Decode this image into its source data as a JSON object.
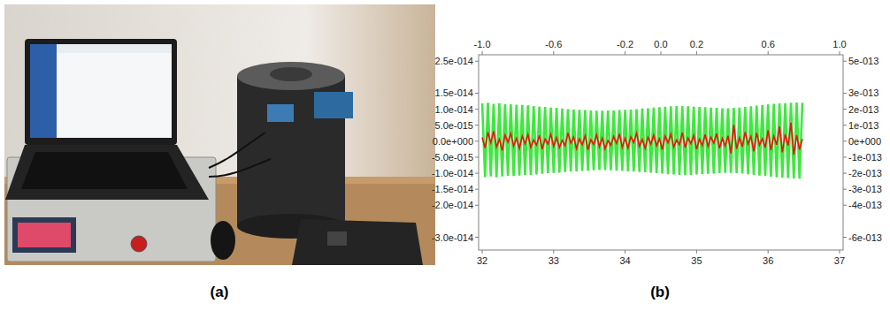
{
  "panel_labels": [
    "(a)",
    "(b)"
  ],
  "chart_data": {
    "type": "line",
    "grid": false,
    "xlim": [
      31.95,
      37.05
    ],
    "xticks": [
      32,
      33,
      34,
      35,
      36,
      37
    ],
    "x2lim": [
      -1.02,
      1.02
    ],
    "x2ticks": [
      {
        "value": -1.0,
        "label": "-1.0"
      },
      -0.6,
      -0.2,
      {
        "value": 0.0,
        "label": "0.0"
      },
      0.2,
      0.6,
      {
        "value": 1.0,
        "label": "1.0"
      }
    ],
    "ylim": [
      -3.4e-14,
      2.7e-14
    ],
    "yticks": [
      {
        "value": 2.5e-14,
        "label": "2.5e-014"
      },
      {
        "value": 1.5e-14,
        "label": "1.5e-014"
      },
      {
        "value": 1e-14,
        "label": "1.0e-014"
      },
      {
        "value": 5e-15,
        "label": "5.0e-015"
      },
      {
        "value": 0,
        "label": "0.0e+000"
      },
      {
        "value": -5e-15,
        "label": "-5.0e-015"
      },
      {
        "value": -1e-14,
        "label": "-1.0e-014"
      },
      {
        "value": -1.5e-14,
        "label": "-1.5e-014"
      },
      {
        "value": -2e-14,
        "label": "-2.0e-014"
      },
      {
        "value": -3e-14,
        "label": "-3.0e-014"
      }
    ],
    "y2lim": [
      -6.8e-13,
      5.4e-13
    ],
    "y2ticks": [
      {
        "value": 5e-13,
        "label": "5e-013"
      },
      {
        "value": 3e-13,
        "label": "3e-013"
      },
      {
        "value": 2e-13,
        "label": "2e-013"
      },
      {
        "value": 1e-13,
        "label": "1e-013"
      },
      {
        "value": 0,
        "label": "0e+000"
      },
      {
        "value": -1e-13,
        "label": "-1e-013"
      },
      {
        "value": -2e-13,
        "label": "-2e-013"
      },
      {
        "value": -3e-13,
        "label": "-3e-013"
      },
      {
        "value": -4e-13,
        "label": "-4e-013"
      },
      {
        "value": -6e-13,
        "label": "-6e-013"
      }
    ],
    "x": [
      32.0,
      32.04,
      32.08,
      32.12,
      32.16,
      32.2,
      32.24,
      32.28,
      32.32,
      32.36,
      32.4,
      32.44,
      32.48,
      32.52,
      32.56,
      32.6,
      32.64,
      32.68,
      32.72,
      32.76,
      32.8,
      32.84,
      32.88,
      32.92,
      32.96,
      33.0,
      33.04,
      33.08,
      33.12,
      33.16,
      33.2,
      33.24,
      33.28,
      33.32,
      33.36,
      33.4,
      33.44,
      33.48,
      33.52,
      33.56,
      33.6,
      33.64,
      33.68,
      33.72,
      33.76,
      33.8,
      33.84,
      33.88,
      33.92,
      33.96,
      34.0,
      34.04,
      34.08,
      34.12,
      34.16,
      34.2,
      34.24,
      34.28,
      34.32,
      34.36,
      34.4,
      34.44,
      34.48,
      34.52,
      34.56,
      34.6,
      34.64,
      34.68,
      34.72,
      34.76,
      34.8,
      34.84,
      34.88,
      34.92,
      34.96,
      35.0,
      35.04,
      35.08,
      35.12,
      35.16,
      35.2,
      35.24,
      35.28,
      35.32,
      35.36,
      35.4,
      35.44,
      35.48,
      35.52,
      35.56,
      35.6,
      35.64,
      35.68,
      35.72,
      35.76,
      35.8,
      35.84,
      35.88,
      35.92,
      35.96,
      36.0,
      36.04,
      36.08,
      36.12,
      36.16,
      36.2,
      36.24,
      36.28,
      36.32,
      36.36,
      36.4,
      36.44,
      36.48
    ],
    "series": [
      {
        "color": "#3fe83f",
        "line_style": "solid",
        "values": [
          1.18e-14,
          -1.12e-14,
          1.2e-14,
          -1.1e-14,
          1.17e-14,
          -1.13e-14,
          1.19e-14,
          -1.1e-14,
          1.16e-14,
          -1.08e-14,
          1.15e-14,
          -1.09e-14,
          1.14e-14,
          -1.07e-14,
          1.13e-14,
          -1.06e-14,
          1.12e-14,
          -1.05e-14,
          1.1e-14,
          -1.04e-14,
          1.08e-14,
          -1.02e-14,
          1.07e-14,
          -1e-14,
          1.05e-14,
          -9.9e-15,
          1.04e-14,
          -9.8e-15,
          1.02e-14,
          -9.6e-15,
          1e-14,
          -9.5e-15,
          9.9e-15,
          -9.4e-15,
          9.8e-15,
          -9.3e-15,
          9.7e-15,
          -9.2e-15,
          9.6e-15,
          -9.1e-15,
          9.5e-15,
          -9e-15,
          9.5e-15,
          -9e-15,
          9.6e-15,
          -9.1e-15,
          9.6e-15,
          -9.2e-15,
          9.7e-15,
          -9.3e-15,
          9.8e-15,
          -9.4e-15,
          9.9e-15,
          -9.5e-15,
          1e-14,
          -9.6e-15,
          1.02e-14,
          -9.7e-15,
          1.03e-14,
          -9.8e-15,
          1.05e-14,
          -1e-14,
          1.06e-14,
          -1.01e-14,
          1.08e-14,
          -1.03e-14,
          1.09e-14,
          -1.04e-14,
          1.1e-14,
          -1.05e-14,
          1.1e-14,
          -1.06e-14,
          1.09e-14,
          -1.05e-14,
          1.08e-14,
          -1.04e-14,
          1.07e-14,
          -1.03e-14,
          1.06e-14,
          -1.02e-14,
          1.05e-14,
          -1.01e-14,
          1.04e-14,
          -1e-14,
          1.03e-14,
          -9.9e-15,
          1.03e-14,
          -9.9e-15,
          1.04e-14,
          -1e-14,
          1.05e-14,
          -1.01e-14,
          1.07e-14,
          -1.03e-14,
          1.09e-14,
          -1.05e-14,
          1.11e-14,
          -1.07e-14,
          1.13e-14,
          -1.09e-14,
          1.15e-14,
          -1.11e-14,
          1.17e-14,
          -1.13e-14,
          1.18e-14,
          -1.14e-14,
          1.19e-14,
          -1.15e-14,
          1.2e-14,
          -1.16e-14,
          1.21e-14,
          -1.17e-14,
          1.2e-14
        ]
      },
      {
        "color": "#ee1111",
        "line_style": "solid",
        "values": [
          1.2e-15,
          -2.1e-15,
          2.8e-15,
          -5e-16,
          3.1e-15,
          -1.8e-15,
          6e-16,
          -2.9e-15,
          1.9e-15,
          -3e-16,
          2.4e-15,
          -1.5e-15,
          9e-16,
          -2.2e-15,
          1.6e-15,
          -8e-16,
          2.1e-15,
          -1.9e-15,
          4e-16,
          -1.2e-15,
          1.8e-15,
          -2.5e-15,
          7e-16,
          -9e-16,
          2.2e-15,
          -1.6e-15,
          1.1e-15,
          -2e-15,
          3e-16,
          -1.4e-15,
          2.6e-15,
          -6e-16,
          1.3e-15,
          -2.3e-15,
          8e-16,
          -1.1e-15,
          1.7e-15,
          -2.7e-15,
          5e-16,
          -1e-15,
          2e-15,
          -1.7e-15,
          1e-15,
          -2.4e-15,
          2e-16,
          -1.3e-15,
          1.5e-15,
          -7e-16,
          2.3e-15,
          -1.9e-15,
          9e-16,
          -2.1e-15,
          1.4e-15,
          -4e-16,
          2.5e-15,
          -1.6e-15,
          6e-16,
          -2.2e-15,
          1.2e-15,
          -9e-16,
          1.9e-15,
          -1.4e-15,
          8e-16,
          -2.6e-15,
          1.6e-15,
          -5e-16,
          2.2e-15,
          -1.8e-15,
          4e-16,
          -1.1e-15,
          2.7e-15,
          -2e-15,
          1e-15,
          -8e-16,
          1.8e-15,
          -2.5e-15,
          7e-16,
          -1.3e-15,
          2.1e-15,
          -1.6e-15,
          1.3e-15,
          -6e-16,
          2.4e-15,
          -2.2e-15,
          9e-16,
          -1.5e-15,
          1.7e-15,
          -3.8e-15,
          5.1e-15,
          -2.4e-15,
          1.1e-15,
          -1.7e-15,
          2.9e-15,
          -9e-16,
          1.5e-15,
          -3.2e-15,
          2.6e-15,
          -1.2e-15,
          8e-16,
          -2e-15,
          3.4e-15,
          -2.8e-15,
          1.6e-15,
          -1.1e-15,
          4.6e-15,
          -3.5e-15,
          2.2e-15,
          -1.4e-15,
          5.8e-15,
          -4.2e-15,
          1.9e-15,
          -2.6e-15,
          7e-16
        ]
      }
    ]
  }
}
